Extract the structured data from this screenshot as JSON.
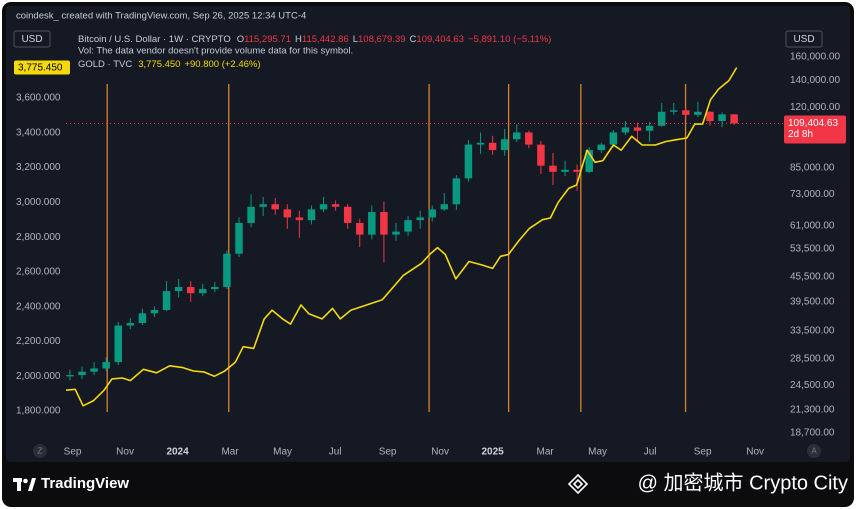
{
  "header": {
    "attribution": "coindesk_ created with TradingView.com, Sep 26, 2025 12:34 UTC-4"
  },
  "chart_data": {
    "type": "candlestick",
    "y_unit": "USD",
    "y2_unit": "USD",
    "grid": false,
    "x": [
      -4.1,
      -3.64,
      -3.18,
      -2.72,
      -2.26,
      -1.8,
      -1.34,
      -0.88,
      -0.42,
      0.04,
      0.5,
      0.96,
      1.42,
      1.88,
      2.34,
      2.8,
      3.26,
      3.72,
      4.18,
      4.64,
      5.1,
      5.56,
      6.02,
      6.48,
      6.94,
      7.4,
      7.86,
      8.32,
      8.78,
      9.24,
      9.7,
      10.16,
      10.62,
      11.08,
      11.54,
      12,
      12.46,
      12.92,
      13.38,
      13.84,
      14.3,
      14.76,
      15.22,
      15.68,
      16.14,
      16.6,
      17.06,
      17.52,
      17.98,
      18.44,
      18.9,
      19.36,
      19.82,
      20.28,
      20.74,
      21.2
    ],
    "xlim": [
      -4.25,
      23.1
    ],
    "xticks": [
      {
        "value": -4,
        "label": "Sep"
      },
      {
        "value": -2,
        "label": "Nov"
      },
      {
        "value": 0,
        "label": "2024"
      },
      {
        "value": 2,
        "label": "Mar"
      },
      {
        "value": 4,
        "label": "May"
      },
      {
        "value": 6,
        "label": "Jul"
      },
      {
        "value": 8,
        "label": "Sep"
      },
      {
        "value": 10,
        "label": "Nov"
      },
      {
        "value": 12,
        "label": "2025"
      },
      {
        "value": 14,
        "label": "Mar"
      },
      {
        "value": 16,
        "label": "May"
      },
      {
        "value": 18,
        "label": "Jul"
      },
      {
        "value": 20,
        "label": "Sep"
      },
      {
        "value": 22,
        "label": "Nov"
      }
    ],
    "ylim": [
      1553,
      3991
    ],
    "yticks": [
      {
        "value": 1800,
        "label": "1,800.000"
      },
      {
        "value": 2000,
        "label": "2,000.000"
      },
      {
        "value": 2200,
        "label": "2,200.000"
      },
      {
        "value": 2400,
        "label": "2,400.000"
      },
      {
        "value": 2600,
        "label": "2,600.000"
      },
      {
        "value": 2800,
        "label": "2,800.000"
      },
      {
        "value": 3000,
        "label": "3,000.000"
      },
      {
        "value": 3200,
        "label": "3,200.000"
      },
      {
        "value": 3400,
        "label": "3,400.000"
      },
      {
        "value": 3600,
        "label": "3,600.000"
      }
    ],
    "y2lim": [
      16560,
      186700
    ],
    "y2scale": "log",
    "y2ticks": [
      {
        "value": 18700,
        "label": "18,700.00"
      },
      {
        "value": 21300,
        "label": "21,300.00"
      },
      {
        "value": 24500,
        "label": "24,500.00"
      },
      {
        "value": 28500,
        "label": "28,500.00"
      },
      {
        "value": 33500,
        "label": "33,500.00"
      },
      {
        "value": 39500,
        "label": "39,500.00"
      },
      {
        "value": 45500,
        "label": "45,500.00"
      },
      {
        "value": 53500,
        "label": "53,500.00"
      },
      {
        "value": 61000,
        "label": "61,000.00"
      },
      {
        "value": 73000,
        "label": "73,000.00"
      },
      {
        "value": 85000,
        "label": "85,000.00"
      },
      {
        "value": 120000,
        "label": "120,000.00"
      },
      {
        "value": 140000,
        "label": "140,000.00"
      },
      {
        "value": 160000,
        "label": "160,000.00"
      }
    ],
    "vlines": {
      "color": "#d9822b",
      "x": [
        -2.68,
        1.95,
        9.58,
        12.61,
        15.36,
        19.35
      ]
    },
    "series": [
      {
        "name": "Bitcoin / U.S. Dollar · 1W · CRYPTO",
        "axis": "y2",
        "up_color": "#089981",
        "down_color": "#f23645",
        "legend": [
          {
            "label": "O",
            "value": "115,295.71"
          },
          {
            "label": "H",
            "value": "115,442.86"
          },
          {
            "label": "L",
            "value": "108,679.39"
          },
          {
            "label": "C",
            "value": "109,404.63"
          }
        ],
        "change": "−5,891.10 (−5.11%)",
        "note": "Vol: The data vendor doesn't provide volume data for this symbol.",
        "last_label": "109,404.63",
        "countdown": "2d 8h",
        "open": [
          25800,
          26000,
          26500,
          27000,
          28000,
          34500,
          35000,
          37000,
          37700,
          42000,
          43000,
          41500,
          42500,
          43000,
          52000,
          62000,
          68000,
          69000,
          67000,
          64000,
          63000,
          67000,
          69000,
          68000,
          62000,
          58000,
          66000,
          58000,
          59000,
          63000,
          64000,
          67000,
          69000,
          80000,
          97000,
          98000,
          94000,
          100000,
          104000,
          97000,
          86000,
          83000,
          84000,
          83000,
          94000,
          97000,
          104000,
          107000,
          105000,
          108000,
          117000,
          118000,
          115000,
          117000,
          111000,
          115295.71
        ],
        "high": [
          26800,
          27300,
          28000,
          28800,
          35200,
          36000,
          38000,
          38500,
          44500,
          45000,
          44500,
          43800,
          44200,
          53000,
          64000,
          73000,
          72000,
          71500,
          69000,
          66500,
          68500,
          71900,
          70500,
          69000,
          63500,
          68500,
          70000,
          62000,
          64500,
          66500,
          68500,
          73500,
          81500,
          99500,
          104000,
          102000,
          106000,
          109000,
          105000,
          99000,
          92500,
          88500,
          86500,
          95500,
          98000,
          105500,
          111000,
          110000,
          110500,
          123000,
          123000,
          120000,
          124000,
          117500,
          116500,
          115442.86
        ],
        "low": [
          25200,
          25400,
          26000,
          26600,
          27500,
          33800,
          34600,
          36200,
          37400,
          40500,
          39500,
          40800,
          41800,
          42500,
          51000,
          60500,
          64500,
          65000,
          60000,
          57000,
          61500,
          66000,
          66500,
          60000,
          54000,
          56500,
          49500,
          56000,
          57500,
          60000,
          62500,
          66500,
          66800,
          78500,
          92000,
          91500,
          91000,
          98500,
          95000,
          82000,
          77000,
          81000,
          74500,
          82500,
          92500,
          95500,
          102500,
          99000,
          98500,
          107500,
          115000,
          112000,
          113500,
          108000,
          107300,
          108679.39
        ],
        "close": [
          26000,
          26500,
          27000,
          28000,
          34500,
          35000,
          37000,
          37700,
          42000,
          43000,
          41500,
          42500,
          43000,
          52000,
          62000,
          68000,
          69000,
          67000,
          64000,
          63000,
          67000,
          69000,
          68000,
          62000,
          58000,
          66000,
          58000,
          59000,
          63000,
          64000,
          67000,
          69000,
          80000,
          97000,
          98000,
          94000,
          100000,
          104000,
          97000,
          86000,
          83000,
          84000,
          83000,
          94000,
          97000,
          104000,
          107000,
          105000,
          108000,
          117000,
          118000,
          115000,
          117000,
          111000,
          115295.71,
          109404.63
        ]
      },
      {
        "name": "GOLD · TVC",
        "type": "line",
        "color": "#f5d90a",
        "legend_value": "3,775.450",
        "change": "+90.800 (+2.46%)",
        "last_label": "3,775.450",
        "x": [
          -4.25,
          -3.9,
          -3.6,
          -3.2,
          -2.8,
          -2.5,
          -2.1,
          -1.8,
          -1.3,
          -0.8,
          -0.3,
          0.2,
          0.6,
          1.0,
          1.4,
          1.8,
          2.2,
          2.5,
          2.9,
          3.3,
          3.6,
          4.0,
          4.3,
          4.7,
          5.0,
          5.5,
          5.9,
          6.2,
          6.6,
          7.0,
          7.4,
          7.8,
          8.2,
          8.6,
          9.0,
          9.3,
          9.6,
          9.9,
          10.2,
          10.6,
          11.1,
          11.6,
          12.0,
          12.3,
          12.6,
          13.0,
          13.4,
          13.9,
          14.2,
          14.5,
          14.9,
          15.2,
          15.6,
          15.9,
          16.2,
          16.6,
          16.9,
          17.3,
          17.7,
          18.2,
          18.6,
          19.0,
          19.4,
          19.7,
          20.0,
          20.3,
          20.6,
          21.0,
          21.3
        ],
        "values": [
          1920,
          1925,
          1830,
          1860,
          1920,
          1985,
          1990,
          1975,
          2040,
          2020,
          2060,
          2050,
          2030,
          2025,
          2000,
          2030,
          2080,
          2170,
          2160,
          2330,
          2380,
          2330,
          2300,
          2410,
          2360,
          2330,
          2390,
          2330,
          2380,
          2400,
          2420,
          2440,
          2510,
          2580,
          2620,
          2650,
          2700,
          2740,
          2700,
          2560,
          2660,
          2640,
          2620,
          2690,
          2700,
          2780,
          2850,
          2900,
          2910,
          3000,
          3080,
          3100,
          3300,
          3230,
          3240,
          3330,
          3300,
          3380,
          3330,
          3330,
          3350,
          3360,
          3370,
          3450,
          3450,
          3590,
          3650,
          3700,
          3775.45
        ]
      }
    ]
  },
  "controls": {
    "left": "Z",
    "right": "A"
  },
  "footer": {
    "brand": "TradingView",
    "watermark": "@ 加密城市 Crypto City"
  }
}
